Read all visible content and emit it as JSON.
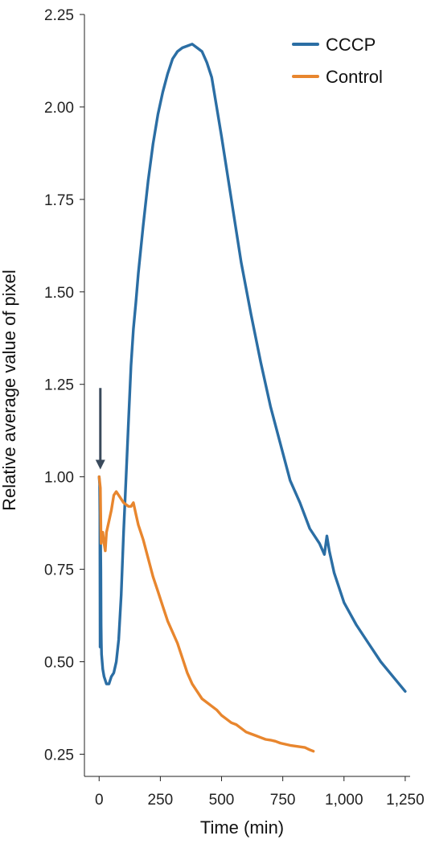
{
  "chart_data": {
    "type": "line",
    "title": "",
    "xlabel": "Time (min)",
    "ylabel": "Relative average value of pixel",
    "xlim": [
      -60,
      1270
    ],
    "ylim": [
      0.19,
      2.25
    ],
    "xticks": [
      0,
      250,
      500,
      750,
      1000,
      1250
    ],
    "xtick_labels": [
      "0",
      "250",
      "500",
      "750",
      "1,000",
      "1,250"
    ],
    "yticks": [
      0.25,
      0.5,
      0.75,
      1.0,
      1.25,
      1.5,
      1.75,
      2.0,
      2.25
    ],
    "ytick_labels": [
      "0.25",
      "0.50",
      "0.75",
      "1.00",
      "1.25",
      "1.50",
      "1.75",
      "2.00",
      "2.25"
    ],
    "grid": false,
    "legend_position": "top-right",
    "series": [
      {
        "name": "CCCP",
        "color": "#2b6ea4",
        "x": [
          0,
          2,
          3,
          4,
          5,
          6,
          7,
          8,
          9,
          10,
          15,
          20,
          30,
          40,
          50,
          60,
          70,
          80,
          90,
          100,
          110,
          120,
          130,
          140,
          150,
          160,
          180,
          200,
          220,
          240,
          260,
          280,
          300,
          320,
          340,
          360,
          380,
          400,
          420,
          440,
          460,
          480,
          500,
          540,
          580,
          620,
          660,
          700,
          740,
          780,
          820,
          860,
          900,
          920,
          930,
          940,
          960,
          1000,
          1050,
          1100,
          1150,
          1200,
          1250
        ],
        "y": [
          1.0,
          0.98,
          0.9,
          0.54,
          0.6,
          0.82,
          0.75,
          0.6,
          0.55,
          0.52,
          0.48,
          0.46,
          0.44,
          0.44,
          0.46,
          0.47,
          0.5,
          0.56,
          0.68,
          0.85,
          1.0,
          1.15,
          1.3,
          1.4,
          1.47,
          1.55,
          1.68,
          1.8,
          1.9,
          1.98,
          2.04,
          2.09,
          2.13,
          2.15,
          2.16,
          2.165,
          2.17,
          2.16,
          2.15,
          2.12,
          2.08,
          2.0,
          1.92,
          1.75,
          1.58,
          1.44,
          1.31,
          1.19,
          1.09,
          0.99,
          0.93,
          0.86,
          0.82,
          0.79,
          0.84,
          0.8,
          0.74,
          0.66,
          0.6,
          0.55,
          0.5,
          0.46,
          0.42
        ]
      },
      {
        "name": "Control",
        "color": "#e8862e",
        "x": [
          0,
          5,
          8,
          10,
          15,
          20,
          25,
          30,
          40,
          50,
          60,
          70,
          80,
          100,
          120,
          130,
          140,
          150,
          160,
          180,
          200,
          220,
          240,
          260,
          280,
          300,
          320,
          340,
          360,
          380,
          400,
          420,
          440,
          460,
          480,
          500,
          520,
          540,
          560,
          580,
          600,
          620,
          640,
          660,
          680,
          700,
          720,
          740,
          760,
          780,
          800,
          820,
          840,
          860,
          875
        ],
        "y": [
          1.0,
          0.97,
          0.82,
          0.85,
          0.85,
          0.82,
          0.8,
          0.85,
          0.88,
          0.91,
          0.95,
          0.96,
          0.95,
          0.93,
          0.92,
          0.92,
          0.93,
          0.9,
          0.87,
          0.83,
          0.78,
          0.73,
          0.69,
          0.65,
          0.61,
          0.58,
          0.55,
          0.51,
          0.47,
          0.44,
          0.42,
          0.4,
          0.39,
          0.38,
          0.37,
          0.355,
          0.345,
          0.335,
          0.33,
          0.32,
          0.31,
          0.305,
          0.3,
          0.295,
          0.29,
          0.288,
          0.285,
          0.28,
          0.277,
          0.274,
          0.272,
          0.27,
          0.268,
          0.262,
          0.258
        ]
      }
    ],
    "annotations": [
      {
        "type": "arrow",
        "color": "#3a4a5c",
        "x": 5,
        "y_from": 1.24,
        "y_to": 1.02
      }
    ]
  }
}
